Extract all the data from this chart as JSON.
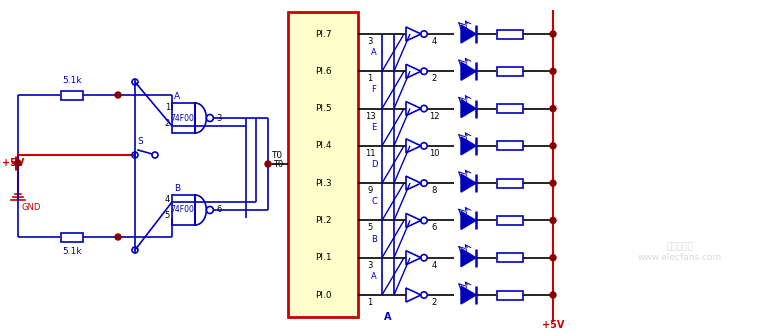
{
  "bg_color": "#ffffff",
  "fig_width": 7.75,
  "fig_height": 3.32,
  "dpi": 100,
  "cc": "#0000bb",
  "rc": "#cc0000",
  "nc": "#880000",
  "wc": "#000000",
  "pi_labels": [
    "PI.0",
    "PI.1",
    "PI.2",
    "PI.3",
    "PI.4",
    "PI.5",
    "PI.6",
    "PI.7"
  ],
  "pi_nums_left": [
    "1",
    "3",
    "5",
    "9",
    "11",
    "13",
    "1",
    "3"
  ],
  "pi_nums_right": [
    "2",
    "4",
    "6",
    "8",
    "10",
    "12",
    "2",
    "4"
  ],
  "bus_letters": [
    "A",
    "B",
    "C",
    "D",
    "E",
    "F",
    "A",
    "B"
  ],
  "gate_label": "74F00",
  "chip_border": "#cc0000",
  "chip_fill": "#ffffcc",
  "plus5v": "+5V",
  "gnd": "GND",
  "T0": "T0",
  "S": "S",
  "r51k": "5.1k"
}
